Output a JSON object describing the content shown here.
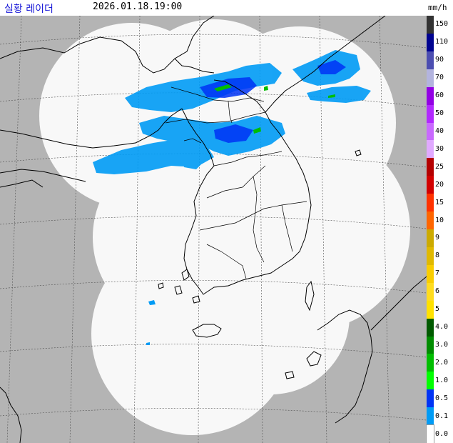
{
  "header": {
    "title": "실황 레이더",
    "timestamp": "2026.01.18.19:00",
    "unit": "mm/h"
  },
  "legend": {
    "entries": [
      {
        "label": "150",
        "color": "#333333"
      },
      {
        "label": "110",
        "color": "#000390"
      },
      {
        "label": "90",
        "color": "#4c4eb1"
      },
      {
        "label": "70",
        "color": "#b3b4de"
      },
      {
        "label": "60",
        "color": "#9300e4"
      },
      {
        "label": "50",
        "color": "#b229ff"
      },
      {
        "label": "40",
        "color": "#c969ff"
      },
      {
        "label": "30",
        "color": "#e0a9ff"
      },
      {
        "label": "25",
        "color": "#b40000"
      },
      {
        "label": "20",
        "color": "#d20000"
      },
      {
        "label": "15",
        "color": "#ff3200"
      },
      {
        "label": "10",
        "color": "#ff6600"
      },
      {
        "label": "9",
        "color": "#ccaa00"
      },
      {
        "label": "8",
        "color": "#e0b900"
      },
      {
        "label": "7",
        "color": "#f9cd00"
      },
      {
        "label": "6",
        "color": "#ffdc1f"
      },
      {
        "label": "5",
        "color": "#ffe100"
      },
      {
        "label": "4.0",
        "color": "#005a00"
      },
      {
        "label": "3.0",
        "color": "#008c00"
      },
      {
        "label": "2.0",
        "color": "#00be00"
      },
      {
        "label": "1.0",
        "color": "#00ff00"
      },
      {
        "label": "0.5",
        "color": "#0033f5"
      },
      {
        "label": "0.1",
        "color": "#009bf5"
      },
      {
        "label": "0.0",
        "color": "#ffffff"
      }
    ]
  },
  "colors": {
    "outside_coverage": "#b4b4b4",
    "coverage": "#f8f8f8",
    "coastline": "#000000",
    "graticule": "#505050",
    "rain_light": "#009bf5",
    "rain_medium": "#0033f5",
    "rain_heavy": "#00be00"
  }
}
